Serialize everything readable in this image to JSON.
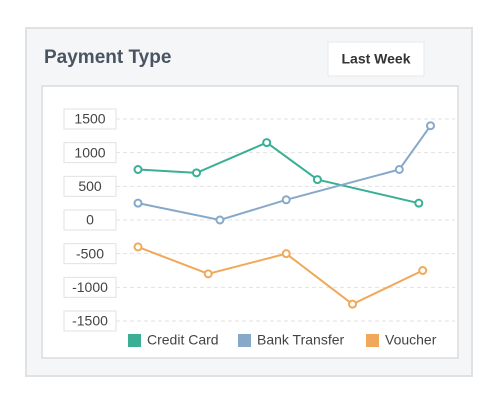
{
  "filter_button": "Last Week",
  "chart_data": {
    "type": "line",
    "title": "Payment Type",
    "xlim": [
      0,
      100
    ],
    "series": [
      {
        "name": "Credit Card",
        "color": "#3aaf95",
        "x": [
          20,
          35,
          53,
          66,
          92
        ],
        "values": [
          750,
          700,
          1150,
          600,
          250
        ]
      },
      {
        "name": "Bank Transfer",
        "color": "#87a9c9",
        "x": [
          20,
          41,
          58,
          87,
          95
        ],
        "values": [
          250,
          0,
          300,
          750,
          1400
        ]
      },
      {
        "name": "Voucher",
        "color": "#f0a95b",
        "x": [
          20,
          38,
          58,
          75,
          93
        ],
        "values": [
          -400,
          -800,
          -500,
          -1250,
          -750
        ]
      }
    ],
    "ylim": [
      -1500,
      1500
    ],
    "yticks": [
      1500,
      1000,
      500,
      0,
      -500,
      -1000,
      -1500
    ],
    "grid": true,
    "legend": "bottom"
  }
}
